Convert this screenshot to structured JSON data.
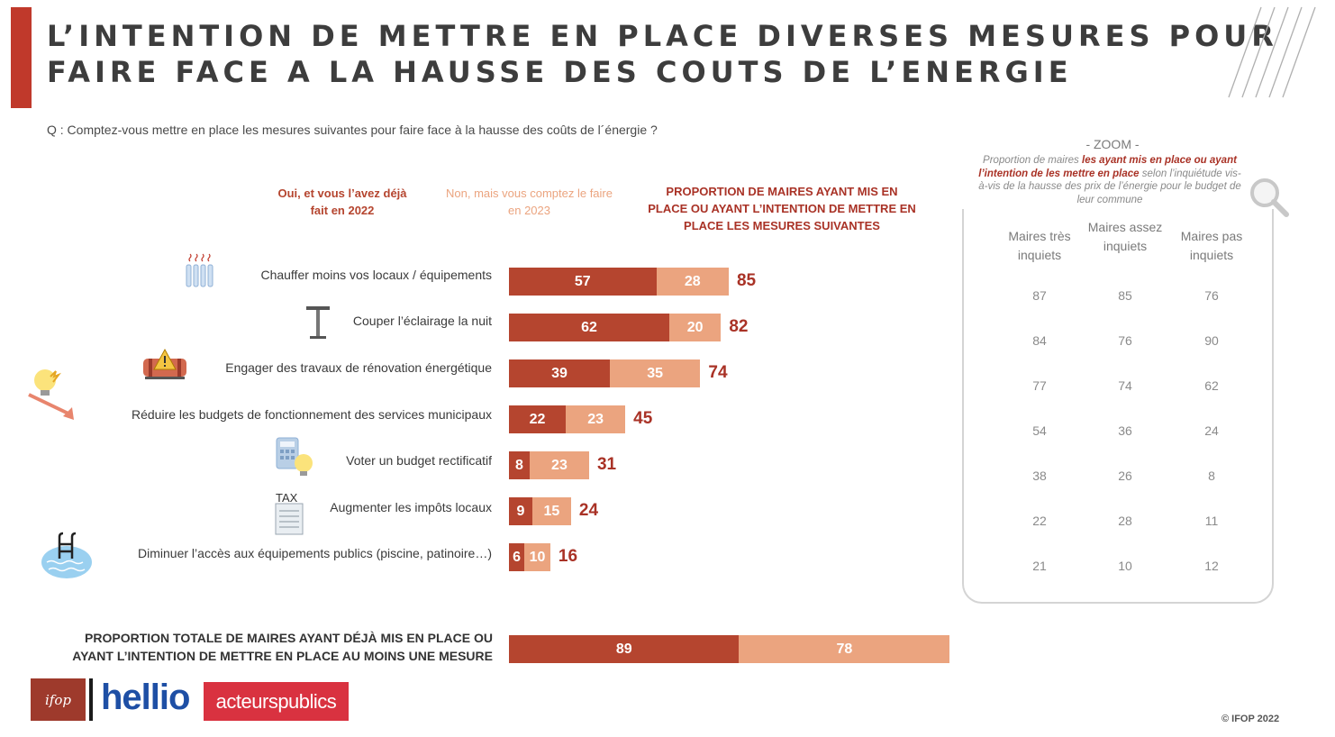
{
  "title": {
    "line1": "L’INTENTION DE METTRE EN PLACE DIVERSES MESURES POUR",
    "line2": "FAIRE FACE A LA HAUSSE DES COUTS DE L’ENERGIE"
  },
  "question": "Q : Comptez-vous mettre en place les mesures suivantes pour faire face à la hausse des coûts de l´énergie ?",
  "legend": {
    "oui": "Oui, et vous l’avez déjà fait en 2022",
    "non": "Non, mais vous comptez le faire en 2023",
    "proportion": "PROPORTION DE MAIRES AYANT MIS EN PLACE OU AYANT L’INTENTION DE METTRE EN PLACE LES MESURES SUIVANTES"
  },
  "colors": {
    "accent": "#b5452f",
    "light": "#eba47f",
    "total_text": "#a93226"
  },
  "chart_data": {
    "type": "bar",
    "orientation": "horizontal",
    "stacked": true,
    "categories": [
      "Chauffer moins vos locaux / équipements",
      "Couper l’éclairage la nuit",
      "Engager des travaux de rénovation énergétique",
      "Réduire les budgets de fonctionnement des services municipaux",
      "Voter un budget rectificatif",
      "Augmenter les impôts locaux",
      "Diminuer l’accès aux équipements publics (piscine, patinoire…)"
    ],
    "series": [
      {
        "name": "Oui, et vous l’avez déjà fait en 2022",
        "values": [
          57,
          62,
          39,
          22,
          8,
          9,
          6
        ]
      },
      {
        "name": "Non, mais vous comptez le faire en 2023",
        "values": [
          28,
          20,
          35,
          23,
          23,
          15,
          10
        ]
      }
    ],
    "totals": [
      85,
      82,
      74,
      45,
      31,
      24,
      16
    ],
    "overall": {
      "label": "PROPORTION TOTALE DE MAIRES AYANT DÉJÀ MIS EN PLACE OU AYANT L’INTENTION DE METTRE EN PLACE AU MOINS UNE MESURE",
      "values": [
        89,
        78
      ]
    }
  },
  "zoom": {
    "title": "- ZOOM -",
    "desc_pre": "Proportion de maires ",
    "desc_bold": "les ayant mis en place ou ayant l’intention de les mettre en place",
    "desc_post": " selon l’inquiétude vis-à-vis de la hausse des prix de l’énergie pour le budget de leur commune",
    "columns": [
      "Maires très inquiets",
      "Maires assez inquiets",
      "Maires pas inquiets"
    ],
    "rows": [
      [
        87,
        85,
        76
      ],
      [
        84,
        76,
        90
      ],
      [
        77,
        74,
        62
      ],
      [
        54,
        36,
        24
      ],
      [
        38,
        26,
        8
      ],
      [
        22,
        28,
        11
      ],
      [
        21,
        10,
        12
      ]
    ]
  },
  "logos": {
    "ifop": "ifop",
    "hellio": "hellio",
    "acteurs": "acteurspublics"
  },
  "copyright": "© IFOP 2022"
}
